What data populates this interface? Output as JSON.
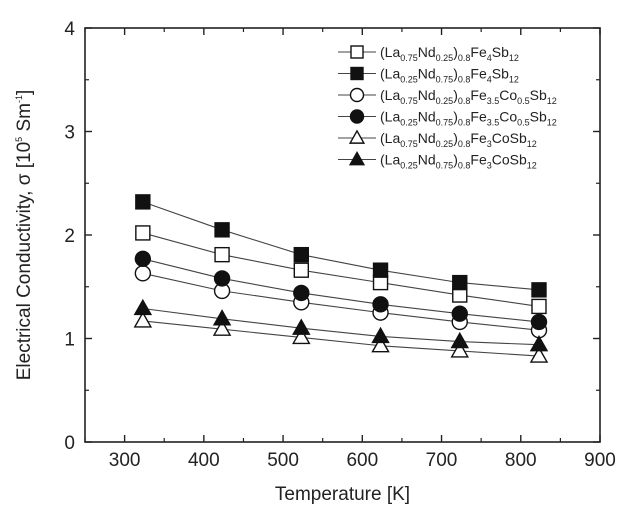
{
  "chart_data": {
    "type": "line",
    "title": "",
    "xlabel": "Temperature [K]",
    "ylabel_parts": {
      "main": "Electrical Conductivity, ",
      "symbol": "σ",
      "unit_open": " [10",
      "unit_exp": "5",
      "unit_mid": " Sm",
      "unit_exp2": "-1",
      "unit_close": "]"
    },
    "xlim": [
      250,
      900
    ],
    "ylim": [
      0,
      4
    ],
    "xticks": [
      300,
      400,
      500,
      600,
      700,
      800,
      900
    ],
    "yticks": [
      0,
      1,
      2,
      3,
      4
    ],
    "grid": false,
    "legend_position": "top-right",
    "x": [
      323,
      423,
      523,
      623,
      723,
      823
    ],
    "series": [
      {
        "name": "(La0.75Nd0.25)0.8Fe4Sb12",
        "name_parts": [
          [
            "(La",
            ""
          ],
          [
            "0.75",
            "sub"
          ],
          [
            "Nd",
            ""
          ],
          [
            "0.25",
            "sub"
          ],
          [
            ")",
            ""
          ],
          [
            "0.8",
            "sub"
          ],
          [
            "Fe",
            ""
          ],
          [
            "4",
            "sub"
          ],
          [
            "Sb",
            ""
          ],
          [
            "12",
            "sub"
          ]
        ],
        "marker": "square",
        "filled": false,
        "values": [
          2.02,
          1.81,
          1.66,
          1.54,
          1.42,
          1.31
        ]
      },
      {
        "name": "(La0.25Nd0.75)0.8Fe4Sb12",
        "name_parts": [
          [
            "(La",
            ""
          ],
          [
            "0.25",
            "sub"
          ],
          [
            "Nd",
            ""
          ],
          [
            "0.75",
            "sub"
          ],
          [
            ")",
            ""
          ],
          [
            "0.8",
            "sub"
          ],
          [
            "Fe",
            ""
          ],
          [
            "4",
            "sub"
          ],
          [
            "Sb",
            ""
          ],
          [
            "12",
            "sub"
          ]
        ],
        "marker": "square",
        "filled": true,
        "values": [
          2.32,
          2.05,
          1.81,
          1.66,
          1.54,
          1.47
        ]
      },
      {
        "name": "(La0.75Nd0.25)0.8Fe3.5Co0.5Sb12",
        "name_parts": [
          [
            "(La",
            ""
          ],
          [
            "0.75",
            "sub"
          ],
          [
            "Nd",
            ""
          ],
          [
            "0.25",
            "sub"
          ],
          [
            ")",
            ""
          ],
          [
            "0.8",
            "sub"
          ],
          [
            "Fe",
            ""
          ],
          [
            "3.5",
            "sub"
          ],
          [
            "Co",
            ""
          ],
          [
            "0.5",
            "sub"
          ],
          [
            "Sb",
            ""
          ],
          [
            "12",
            "sub"
          ]
        ],
        "marker": "circle",
        "filled": false,
        "values": [
          1.63,
          1.46,
          1.35,
          1.25,
          1.16,
          1.08
        ]
      },
      {
        "name": "(La0.25Nd0.75)0.8Fe3.5Co0.5Sb12",
        "name_parts": [
          [
            "(La",
            ""
          ],
          [
            "0.25",
            "sub"
          ],
          [
            "Nd",
            ""
          ],
          [
            "0.75",
            "sub"
          ],
          [
            ")",
            ""
          ],
          [
            "0.8",
            "sub"
          ],
          [
            "Fe",
            ""
          ],
          [
            "3.5",
            "sub"
          ],
          [
            "Co",
            ""
          ],
          [
            "0.5",
            "sub"
          ],
          [
            "Sb",
            ""
          ],
          [
            "12",
            "sub"
          ]
        ],
        "marker": "circle",
        "filled": true,
        "values": [
          1.77,
          1.58,
          1.44,
          1.33,
          1.24,
          1.16
        ]
      },
      {
        "name": "(La0.75Nd0.25)0.8Fe3CoSb12",
        "name_parts": [
          [
            "(La",
            ""
          ],
          [
            "0.75",
            "sub"
          ],
          [
            "Nd",
            ""
          ],
          [
            "0.25",
            "sub"
          ],
          [
            ")",
            ""
          ],
          [
            "0.8",
            "sub"
          ],
          [
            "Fe",
            ""
          ],
          [
            "3",
            "sub"
          ],
          [
            "CoSb",
            ""
          ],
          [
            "12",
            "sub"
          ]
        ],
        "marker": "triangle",
        "filled": false,
        "values": [
          1.17,
          1.09,
          1.01,
          0.93,
          0.88,
          0.83
        ]
      },
      {
        "name": "(La0.25Nd0.75)0.8Fe3CoSb12",
        "name_parts": [
          [
            "(La",
            ""
          ],
          [
            "0.25",
            "sub"
          ],
          [
            "Nd",
            ""
          ],
          [
            "0.75",
            "sub"
          ],
          [
            ")",
            ""
          ],
          [
            "0.8",
            "sub"
          ],
          [
            "Fe",
            ""
          ],
          [
            "3",
            "sub"
          ],
          [
            "CoSb",
            ""
          ],
          [
            "12",
            "sub"
          ]
        ],
        "marker": "triangle",
        "filled": true,
        "values": [
          1.29,
          1.19,
          1.1,
          1.02,
          0.97,
          0.94
        ]
      }
    ]
  },
  "colors": {
    "axis": "#222222",
    "marker": "#111111",
    "line": "#444444",
    "background": "#ffffff"
  }
}
